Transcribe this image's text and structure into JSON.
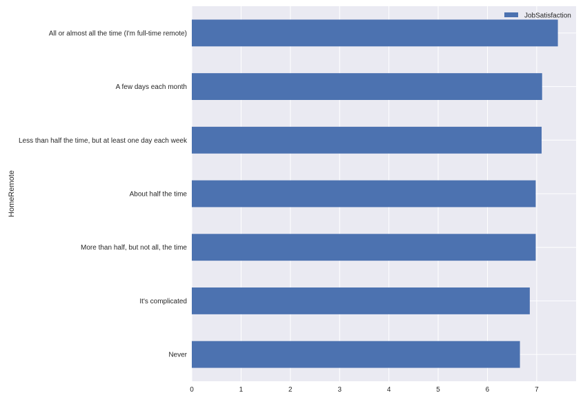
{
  "chart_data": {
    "type": "bar",
    "orientation": "horizontal",
    "title": "",
    "xlabel": "",
    "ylabel": "HomeRemote",
    "xlim": [
      0,
      7.8
    ],
    "xticks": [
      0,
      1,
      2,
      3,
      4,
      5,
      6,
      7
    ],
    "grid": true,
    "legend": "top-right",
    "categories": [
      "All or almost all the time (I'm full-time remote)",
      "A few days each month",
      "Less than half the time, but at least one day each week",
      "About half the time",
      "More than half, but not all, the time",
      "It's complicated",
      "Never"
    ],
    "series": [
      {
        "name": "JobSatisfaction",
        "color": "#4c72b0",
        "values": [
          7.43,
          7.11,
          7.1,
          6.98,
          6.98,
          6.86,
          6.66
        ]
      }
    ]
  },
  "colors": {
    "plot_background": "#eaeaf2",
    "grid": "#ffffff",
    "bar": "#4c72b0"
  }
}
